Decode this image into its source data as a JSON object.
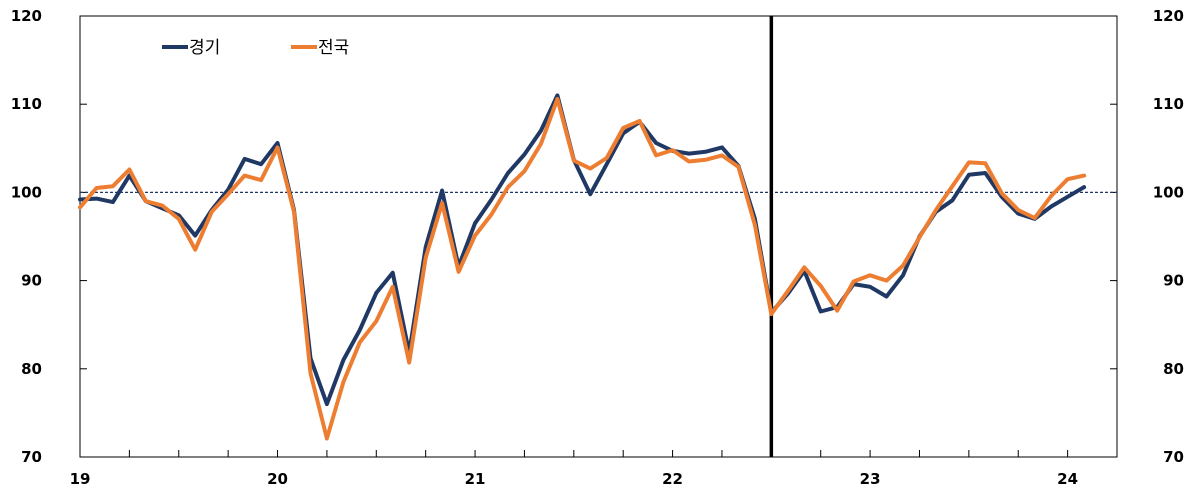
{
  "chart_data": {
    "type": "line",
    "ylim": [
      70,
      120
    ],
    "yticks": [
      "120",
      "110",
      "100",
      "90",
      "80",
      "70"
    ],
    "xlim": [
      2019,
      2024.25
    ],
    "xticks": [
      {
        "x": 2019,
        "label": "19"
      },
      {
        "x": 2020,
        "label": "20"
      },
      {
        "x": 2021,
        "label": "21"
      },
      {
        "x": 2022,
        "label": "22"
      },
      {
        "x": 2023,
        "label": "23"
      },
      {
        "x": 2024,
        "label": "24"
      }
    ],
    "reference_line": 100,
    "vertical_marker_x": 2022.5,
    "x": [
      2019.0,
      2019.0833,
      2019.1667,
      2019.25,
      2019.3333,
      2019.4167,
      2019.5,
      2019.5833,
      2019.6667,
      2019.75,
      2019.8333,
      2019.9167,
      2020.0,
      2020.0833,
      2020.1667,
      2020.25,
      2020.3333,
      2020.4167,
      2020.5,
      2020.5833,
      2020.6667,
      2020.75,
      2020.8333,
      2020.9167,
      2021.0,
      2021.0833,
      2021.1667,
      2021.25,
      2021.3333,
      2021.4167,
      2021.5,
      2021.5833,
      2021.6667,
      2021.75,
      2021.8333,
      2021.9167,
      2022.0,
      2022.0833,
      2022.1667,
      2022.25,
      2022.3333,
      2022.4167,
      2022.5,
      2022.5833,
      2022.6667,
      2022.75,
      2022.8333,
      2022.9167,
      2023.0,
      2023.0833,
      2023.1667,
      2023.25,
      2023.3333,
      2023.4167,
      2023.5,
      2023.5833,
      2023.6667,
      2023.75,
      2023.8333,
      2023.9167,
      2024.0,
      2024.0833
    ],
    "series": [
      {
        "name": "경기",
        "color": "#1f3864",
        "values": [
          99.2,
          99.3,
          98.9,
          101.9,
          99.0,
          98.2,
          97.4,
          95.1,
          98.0,
          100.3,
          103.8,
          103.2,
          105.6,
          98.0,
          81.2,
          76.0,
          81.0,
          84.4,
          88.6,
          90.9,
          81.8,
          93.8,
          100.2,
          91.6,
          96.5,
          99.2,
          102.2,
          104.3,
          107.0,
          111.0,
          103.7,
          99.8,
          103.2,
          106.7,
          108.0,
          105.6,
          104.7,
          104.4,
          104.6,
          105.1,
          103.0,
          97.0,
          86.4,
          88.5,
          91.1,
          86.5,
          87.0,
          89.6,
          89.3,
          88.2,
          90.6,
          95.0,
          97.8,
          99.1,
          102.0,
          102.2,
          99.5,
          97.6,
          97.0,
          98.4,
          99.5,
          100.6
        ]
      },
      {
        "name": "전국",
        "color": "#ed7d31",
        "values": [
          98.3,
          100.5,
          100.7,
          102.6,
          99.0,
          98.5,
          97.0,
          93.5,
          97.8,
          99.8,
          101.9,
          101.4,
          105.1,
          97.8,
          79.5,
          72.1,
          78.5,
          83.0,
          85.4,
          89.3,
          80.7,
          92.6,
          98.8,
          91.0,
          95.1,
          97.5,
          100.6,
          102.4,
          105.5,
          110.6,
          103.6,
          102.7,
          103.9,
          107.3,
          108.1,
          104.2,
          104.8,
          103.5,
          103.7,
          104.2,
          102.9,
          96.3,
          86.2,
          88.8,
          91.5,
          89.4,
          86.6,
          89.9,
          90.6,
          90.0,
          91.7,
          94.9,
          98.0,
          100.7,
          103.4,
          103.3,
          99.9,
          98.0,
          97.1,
          99.6,
          101.5,
          101.9
        ]
      }
    ]
  }
}
